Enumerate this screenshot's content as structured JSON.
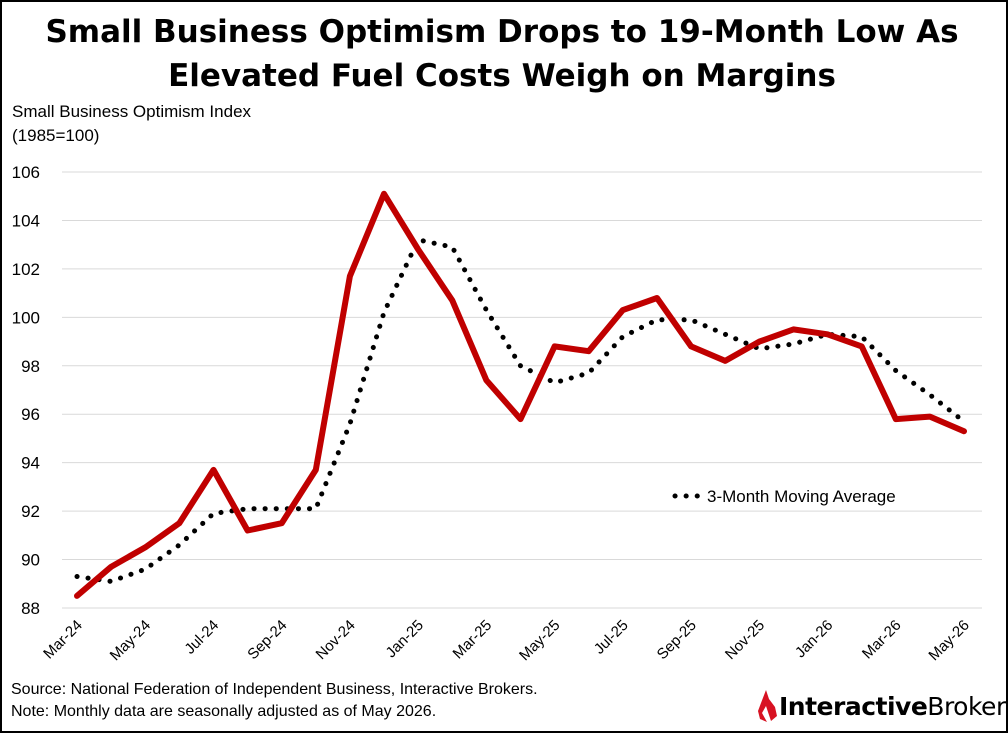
{
  "title_line1": "Small Business Optimism Drops to 19-Month Low As",
  "title_line2": "Elevated Fuel Costs Weigh on Margins",
  "ylabel_line1": "Small Business Optimism Index",
  "ylabel_line2": "(1985=100)",
  "source": "Source: National Federation of Independent  Business, Interactive Brokers.",
  "note": "Note: Monthly data are seasonally adjusted as of May 2026.",
  "brand": {
    "name_bold": "Interactive",
    "name_regular": "Brokers",
    "accent": "#d81222"
  },
  "chart_data": {
    "type": "line",
    "ylim": [
      88,
      106
    ],
    "yticks": [
      88,
      90,
      92,
      94,
      96,
      98,
      100,
      102,
      104,
      106
    ],
    "grid": true,
    "x": [
      "Mar-24",
      "Apr-24",
      "May-24",
      "Jun-24",
      "Jul-24",
      "Aug-24",
      "Sep-24",
      "Oct-24",
      "Nov-24",
      "Dec-24",
      "Jan-25",
      "Feb-25",
      "Mar-25",
      "Apr-25",
      "May-25",
      "Jun-25",
      "Jul-25",
      "Aug-25",
      "Sep-25",
      "Oct-25",
      "Nov-25",
      "Dec-25",
      "Jan-26",
      "Feb-26",
      "Mar-26",
      "Apr-26",
      "May-26"
    ],
    "xtick_labels": [
      "Mar-24",
      "May-24",
      "Jul-24",
      "Sep-24",
      "Nov-24",
      "Jan-25",
      "Mar-25",
      "May-25",
      "Jul-25",
      "Sep-25",
      "Nov-25",
      "Jan-26",
      "Mar-26",
      "May-26"
    ],
    "legend_position": "right",
    "series": [
      {
        "color": "#c00000",
        "style": "solid",
        "values": [
          88.5,
          89.7,
          90.5,
          91.5,
          93.7,
          91.2,
          91.5,
          93.7,
          101.7,
          105.1,
          102.8,
          100.7,
          97.4,
          95.8,
          98.8,
          98.6,
          100.3,
          100.8,
          98.8,
          98.2,
          99.0,
          99.5,
          99.3,
          98.8,
          95.8,
          95.9,
          95.3
        ]
      },
      {
        "name": "3-Month Moving Average",
        "color": "#000000",
        "style": "dotted",
        "values": [
          89.3,
          89.1,
          89.6,
          90.6,
          91.9,
          92.1,
          92.1,
          92.1,
          95.6,
          100.2,
          103.2,
          102.9,
          100.3,
          98.0,
          97.3,
          97.7,
          99.2,
          99.9,
          99.9,
          99.3,
          98.7,
          98.9,
          99.3,
          99.2,
          97.8,
          96.8,
          95.7
        ]
      }
    ]
  }
}
